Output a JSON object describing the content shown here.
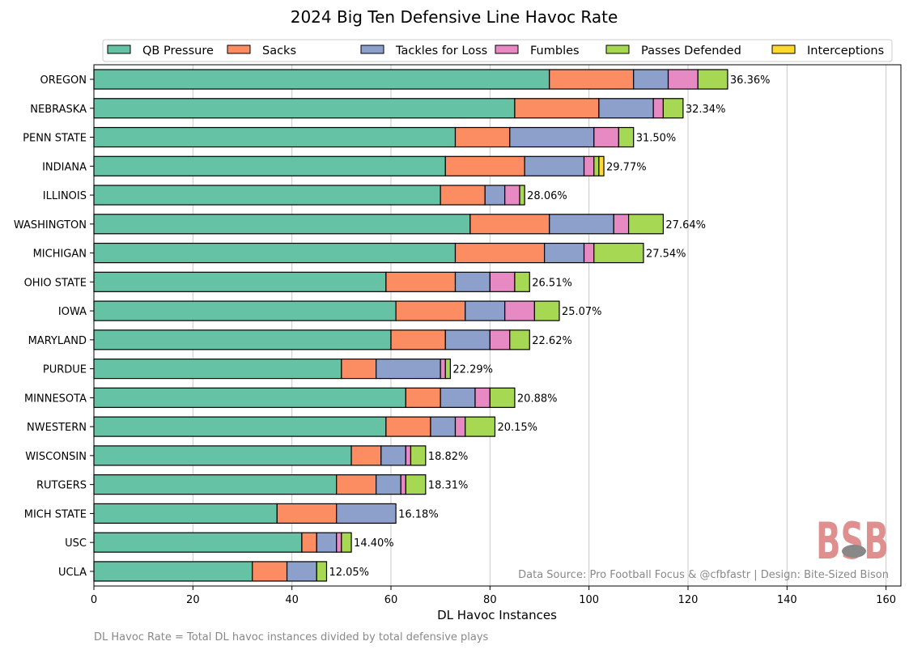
{
  "chart_data": {
    "type": "bar",
    "orientation": "horizontal-stacked",
    "title": "2024 Big Ten Defensive Line Havoc Rate",
    "xlabel": "DL Havoc Instances",
    "ylabel": "",
    "xlim": [
      0,
      163
    ],
    "xticks": [
      0,
      20,
      40,
      60,
      80,
      100,
      120,
      140,
      160
    ],
    "grid": "x",
    "legend_position": "top",
    "categories": [
      "OREGON",
      "NEBRASKA",
      "PENN STATE",
      "INDIANA",
      "ILLINOIS",
      "WASHINGTON",
      "MICHIGAN",
      "OHIO STATE",
      "IOWA",
      "MARYLAND",
      "PURDUE",
      "MINNESOTA",
      "NWESTERN",
      "WISCONSIN",
      "RUTGERS",
      "MICH STATE",
      "USC",
      "UCLA"
    ],
    "series": [
      {
        "name": "QB Pressure",
        "color": "#66c2a5",
        "values": [
          92,
          85,
          73,
          71,
          70,
          76,
          73,
          59,
          61,
          60,
          50,
          63,
          59,
          52,
          49,
          37,
          42,
          32
        ]
      },
      {
        "name": "Sacks",
        "color": "#fc8d62",
        "values": [
          17,
          17,
          11,
          16,
          9,
          16,
          18,
          14,
          14,
          11,
          7,
          7,
          9,
          6,
          8,
          12,
          3,
          7
        ]
      },
      {
        "name": "Tackles for Loss",
        "color": "#8da0cb",
        "values": [
          7,
          11,
          17,
          12,
          4,
          13,
          8,
          7,
          8,
          9,
          13,
          7,
          5,
          5,
          5,
          12,
          4,
          6
        ]
      },
      {
        "name": "Fumbles",
        "color": "#e78ac3",
        "values": [
          6,
          2,
          5,
          2,
          3,
          3,
          2,
          5,
          6,
          4,
          1,
          3,
          2,
          1,
          1,
          0,
          1,
          0
        ]
      },
      {
        "name": "Passes Defended",
        "color": "#a6d854",
        "values": [
          6,
          4,
          3,
          1,
          1,
          7,
          10,
          3,
          5,
          4,
          1,
          5,
          6,
          3,
          4,
          0,
          2,
          2
        ]
      },
      {
        "name": "Interceptions",
        "color": "#ffd92f",
        "values": [
          0,
          0,
          0,
          1,
          0,
          0,
          0,
          0,
          0,
          0,
          0,
          0,
          0,
          0,
          0,
          0,
          0,
          0
        ]
      }
    ],
    "data_labels": [
      "36.36%",
      "32.34%",
      "31.50%",
      "29.77%",
      "28.06%",
      "27.64%",
      "27.54%",
      "26.51%",
      "25.07%",
      "22.62%",
      "22.29%",
      "20.88%",
      "20.15%",
      "18.82%",
      "18.31%",
      "16.18%",
      "14.40%",
      "12.05%"
    ],
    "annotations": {
      "source": "Data Source: Pro Football Focus & @cfbfastr | Design: Bite-Sized Bison",
      "footnote": "DL Havoc Rate = Total DL havoc instances divided by total defensive plays"
    }
  },
  "logo": {
    "text": "BSB",
    "color": "#e08f8f"
  }
}
